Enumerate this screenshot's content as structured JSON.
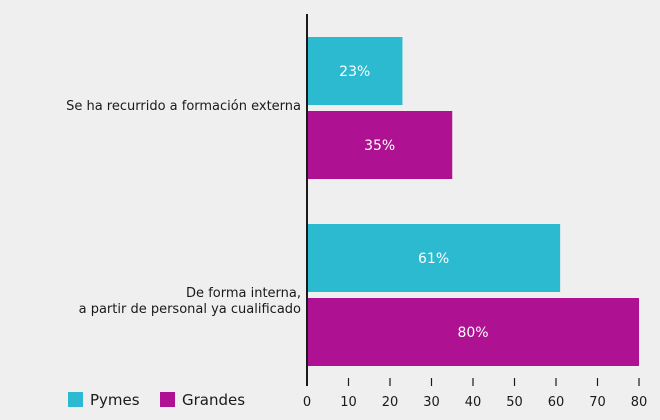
{
  "chart_data": {
    "type": "bar",
    "orientation": "horizontal",
    "categories": [
      [
        "Se ha recurrido a formación externa"
      ],
      [
        "De forma interna,",
        "a partir de personal ya cualificado"
      ]
    ],
    "series": [
      {
        "name": "Pymes",
        "color": "#2cbad0",
        "values": [
          23,
          61
        ],
        "labels": [
          "23%",
          "61%"
        ]
      },
      {
        "name": "Grandes",
        "color": "#ae1191",
        "values": [
          35,
          80
        ],
        "labels": [
          "35%",
          "80%"
        ]
      }
    ],
    "xlim": [
      0,
      80
    ],
    "xticks": [
      0,
      10,
      20,
      30,
      40,
      50,
      60,
      70,
      80
    ],
    "grid": false,
    "legend_position": "bottom-left"
  }
}
